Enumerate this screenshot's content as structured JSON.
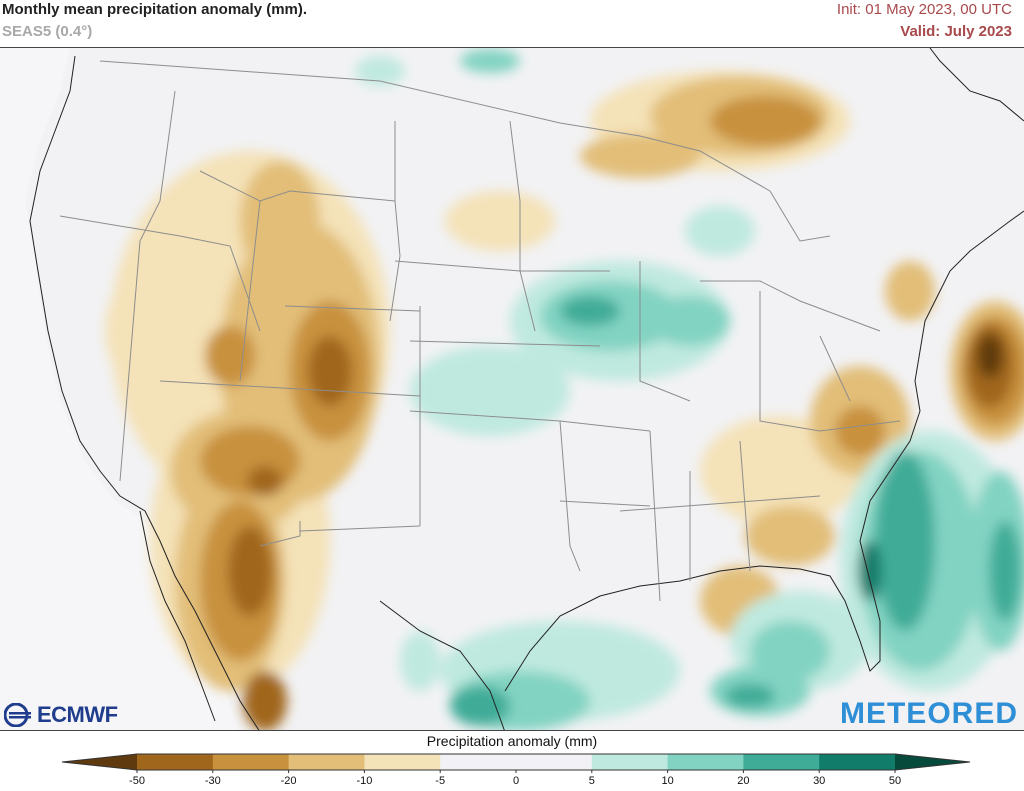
{
  "header": {
    "title": "Monthly mean precipitation anomaly (mm).",
    "subtitle": "SEAS5 (0.4°)",
    "init": "Init: 01 May 2023, 00 UTC",
    "valid": "Valid: July 2023"
  },
  "logos": {
    "left": "ECMWF",
    "right": "METEORED"
  },
  "legend": {
    "title": "Precipitation anomaly (mm)",
    "ticks": [
      "-50",
      "-30",
      "-20",
      "-10",
      "-5",
      "0",
      "5",
      "10",
      "20",
      "30",
      "50"
    ],
    "colors": {
      "lt_-50": "#5e3a0e",
      "-50_-30": "#a0661c",
      "-30_-20": "#c8913d",
      "-20_-10": "#e2be78",
      "-10_-5": "#f4e2b8",
      "-5_0": "#f2f1f5",
      "0_5": "#f2f1f5",
      "5_10": "#bfe9df",
      "10_20": "#82d3c2",
      "20_30": "#3fac98",
      "30_50": "#127c6b",
      "gt_50": "#064a3c"
    }
  }
}
